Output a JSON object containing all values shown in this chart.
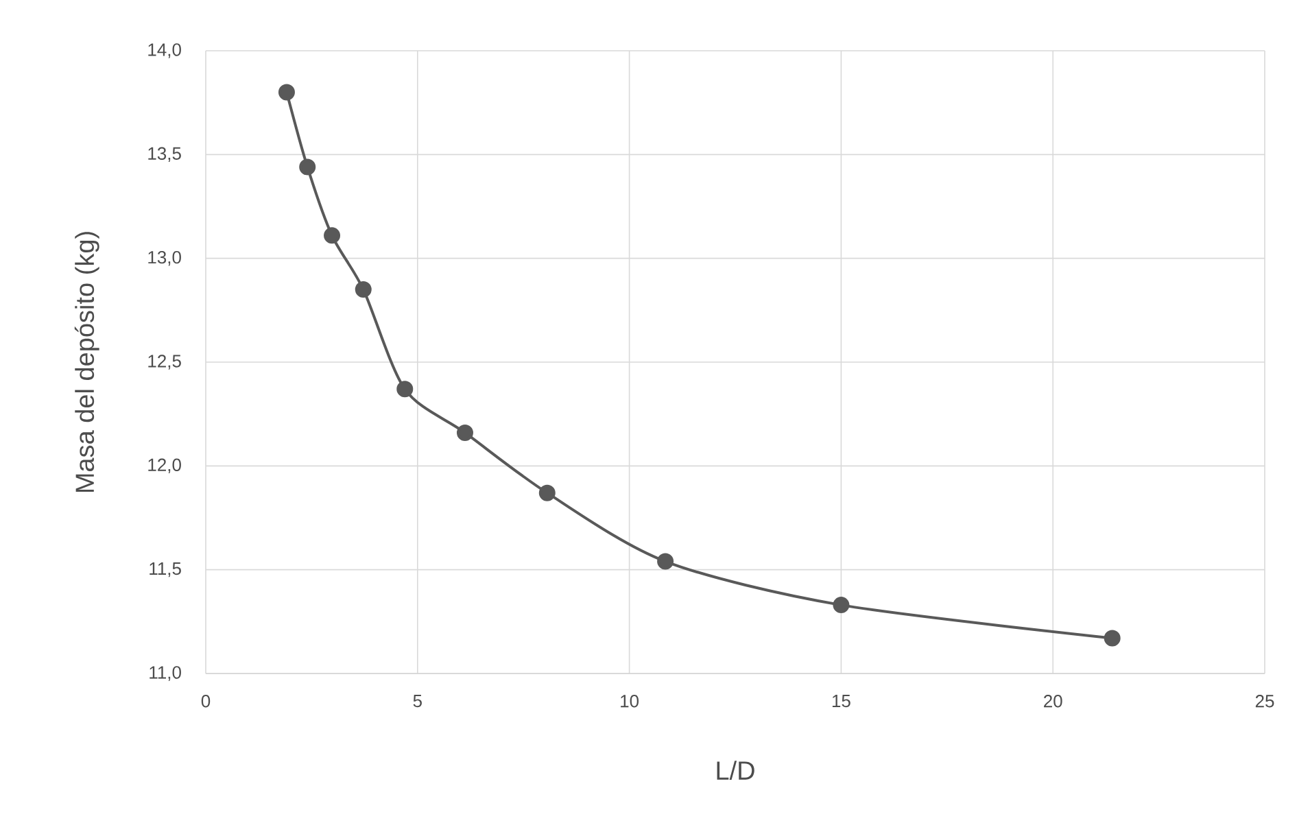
{
  "chart_data": {
    "type": "line",
    "xlabel": "L/D",
    "ylabel": "Masa del depósito (kg)",
    "x": [
      1.91,
      2.4,
      2.98,
      3.72,
      4.7,
      6.12,
      8.06,
      10.85,
      15.0,
      21.4
    ],
    "series": [
      {
        "color": "#595959",
        "values": [
          13.8,
          13.44,
          13.11,
          12.85,
          12.37,
          12.16,
          11.87,
          11.54,
          11.33,
          11.17
        ]
      }
    ],
    "xlim": [
      0,
      25
    ],
    "xticks": [
      0,
      5,
      10,
      15,
      20,
      25
    ],
    "ylim": [
      11,
      14
    ],
    "yticks": [
      {
        "value": 11,
        "label": "11,0"
      },
      {
        "value": 11.5,
        "label": "11,5"
      },
      {
        "value": 12,
        "label": "12,0"
      },
      {
        "value": 12.5,
        "label": "12,5"
      },
      {
        "value": 13,
        "label": "13,0"
      },
      {
        "value": 13.5,
        "label": "13,5"
      },
      {
        "value": 14,
        "label": "14,0"
      }
    ],
    "grid": true,
    "marker": "circle",
    "line_style": "solid"
  }
}
